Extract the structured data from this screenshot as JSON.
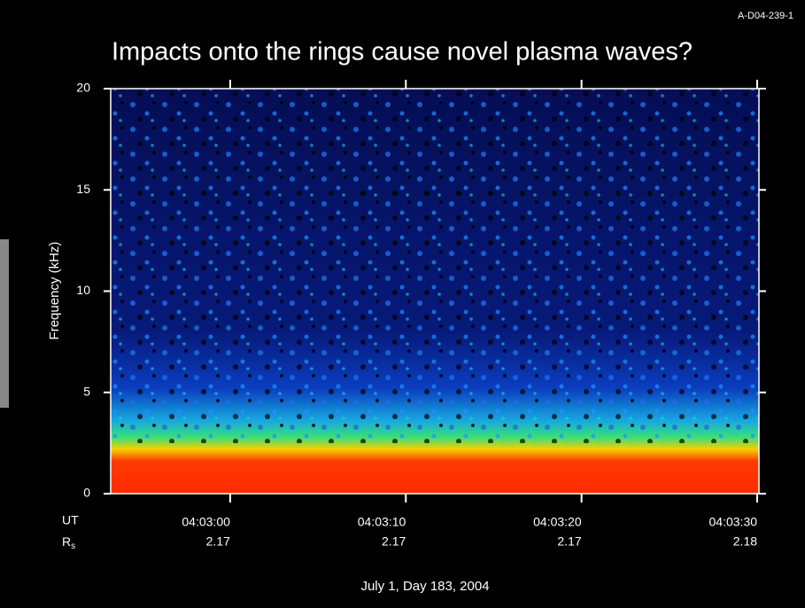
{
  "chart_data": {
    "type": "spectrogram",
    "code": "A-D04-239-1",
    "title": "Impacts onto the rings cause novel plasma waves?",
    "y_label": "Frequency (kHz)",
    "ylim": [
      0,
      20
    ],
    "yticks": [
      0,
      5,
      10,
      15,
      20
    ],
    "xlim": [
      -6.8,
      30.1
    ],
    "xticks": [
      {
        "value": 0,
        "label": "04:03:00"
      },
      {
        "value": 10,
        "label": "04:03:10"
      },
      {
        "value": 20,
        "label": "04:03:20"
      },
      {
        "value": 30,
        "label": "04:03:30"
      }
    ],
    "x_row_label": "UT",
    "rs_row_label": {
      "base": "R",
      "sub": "s"
    },
    "rs_values": [
      2.17,
      2.17,
      2.17,
      2.18
    ],
    "x_label": "July 1, Day 183, 2004"
  }
}
